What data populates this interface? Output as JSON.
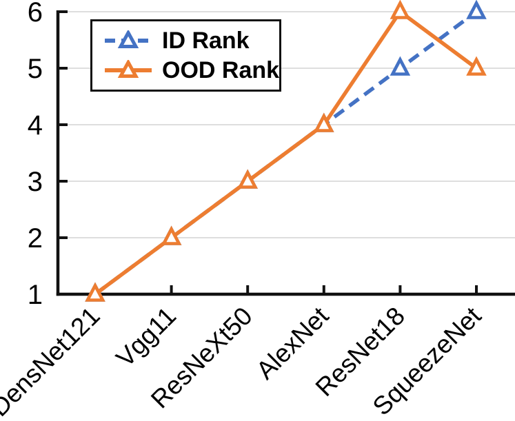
{
  "chart_data": {
    "type": "line",
    "title": "",
    "xlabel": "",
    "ylabel": "",
    "categories": [
      "DensNet121",
      "Vgg11",
      "ResNeXt50",
      "AlexNet",
      "ResNet18",
      "SqueezeNet"
    ],
    "series": [
      {
        "name": "ID Rank",
        "values": [
          1,
          2,
          3,
          4,
          5,
          6
        ],
        "color": "#4472C4",
        "style": "dashed",
        "marker": "triangle-up-hollow"
      },
      {
        "name": "OOD Rank",
        "values": [
          1,
          2,
          3,
          4,
          6,
          5
        ],
        "color": "#ED7D31",
        "style": "solid",
        "marker": "triangle-up-hollow"
      }
    ],
    "yticks": [
      1,
      2,
      3,
      4,
      5,
      6
    ],
    "ylim": [
      1,
      6
    ],
    "grid": "horizontal",
    "gridline_color": "#D9D9D9",
    "axis_color": "#111111",
    "tick_label_color": "#000000",
    "legend_position": "upper-left"
  }
}
